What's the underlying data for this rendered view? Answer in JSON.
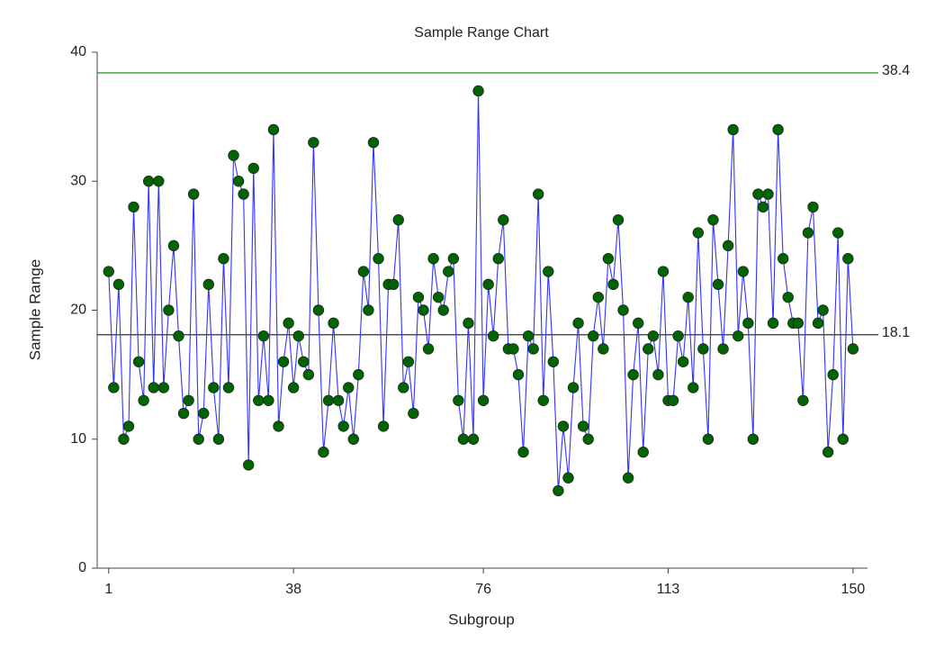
{
  "chart_data": {
    "type": "line",
    "title": "Sample Range Chart",
    "x_label": "Subgroup",
    "y_label": "Sample Range",
    "x": [
      1,
      2,
      3,
      4,
      5,
      6,
      7,
      8,
      9,
      10,
      11,
      12,
      13,
      14,
      15,
      16,
      17,
      18,
      19,
      20,
      21,
      22,
      23,
      24,
      25,
      26,
      27,
      28,
      29,
      30,
      31,
      32,
      33,
      34,
      35,
      36,
      37,
      38,
      39,
      40,
      41,
      42,
      43,
      44,
      45,
      46,
      47,
      48,
      49,
      50,
      51,
      52,
      53,
      54,
      55,
      56,
      57,
      58,
      59,
      60,
      61,
      62,
      63,
      64,
      65,
      66,
      67,
      68,
      69,
      70,
      71,
      72,
      73,
      74,
      75,
      76,
      77,
      78,
      79,
      80,
      81,
      82,
      83,
      84,
      85,
      86,
      87,
      88,
      89,
      90,
      91,
      92,
      93,
      94,
      95,
      96,
      97,
      98,
      99,
      100,
      101,
      102,
      103,
      104,
      105,
      106,
      107,
      108,
      109,
      110,
      111,
      112,
      113,
      114,
      115,
      116,
      117,
      118,
      119,
      120,
      121,
      122,
      123,
      124,
      125,
      126,
      127,
      128,
      129,
      130,
      131,
      132,
      133,
      134,
      135,
      136,
      137,
      138,
      139,
      140,
      141,
      142,
      143,
      144,
      145,
      146,
      147,
      148,
      149,
      150
    ],
    "values": [
      23,
      14,
      22,
      10,
      11,
      28,
      16,
      13,
      30,
      14,
      30,
      14,
      20,
      25,
      18,
      12,
      13,
      29,
      10,
      12,
      22,
      14,
      10,
      24,
      14,
      32,
      30,
      29,
      8,
      31,
      13,
      18,
      13,
      34,
      11,
      16,
      19,
      14,
      18,
      16,
      15,
      33,
      20,
      9,
      13,
      19,
      13,
      11,
      14,
      10,
      15,
      23,
      20,
      33,
      24,
      11,
      22,
      22,
      27,
      14,
      16,
      12,
      21,
      20,
      17,
      24,
      21,
      20,
      23,
      24,
      13,
      10,
      19,
      10,
      37,
      13,
      22,
      18,
      24,
      27,
      17,
      17,
      15,
      9,
      18,
      17,
      29,
      13,
      23,
      16,
      6,
      11,
      7,
      14,
      19,
      11,
      10,
      18,
      21,
      17,
      24,
      22,
      27,
      20,
      7,
      15,
      19,
      9,
      17,
      18,
      15,
      23,
      13,
      13,
      18,
      16,
      21,
      14,
      26,
      17,
      10,
      27,
      22,
      17,
      25,
      34,
      18,
      23,
      19,
      10,
      29,
      28,
      29,
      19,
      34,
      24,
      21,
      19,
      19,
      13,
      26,
      28,
      19,
      20,
      9,
      15,
      26,
      10,
      24,
      17
    ],
    "color": "#3333ff",
    "marker_color": "#006400",
    "xlim": [
      -1.3,
      152.9
    ],
    "xticks": [
      1,
      38,
      76,
      113,
      150
    ],
    "ylim": [
      0,
      40
    ],
    "yticks": [
      0,
      10,
      20,
      30,
      40
    ],
    "control_lines": [
      {
        "value": 38.4,
        "color": "#339933"
      },
      {
        "value": 18.1,
        "color": "#333333"
      }
    ]
  }
}
